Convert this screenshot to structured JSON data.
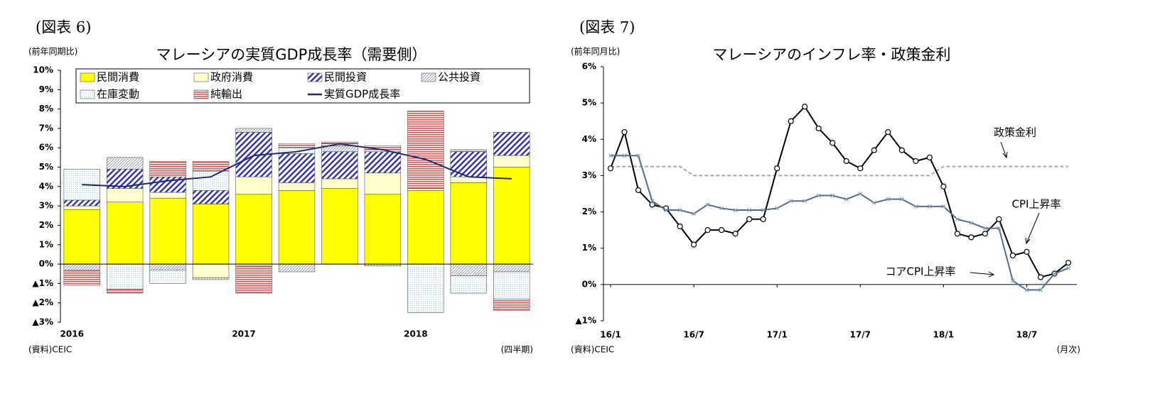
{
  "chart_data": [
    {
      "type": "bar",
      "stacked": true,
      "figure_label": "(図表 6)",
      "title": "マレーシアの実質GDP成長率（需要側）",
      "y_label": "(前年同期比)",
      "x_label": "(四半期)",
      "source": "(資料)CEIC",
      "categories": [
        "2016",
        null,
        null,
        null,
        "2017",
        null,
        null,
        null,
        "2018",
        null,
        null
      ],
      "ylim": [
        -3,
        10
      ],
      "yticks": [
        {
          "value": 10,
          "label": "10%"
        },
        {
          "value": 9,
          "label": "9%"
        },
        {
          "value": 8,
          "label": "8%"
        },
        {
          "value": 7,
          "label": "7%"
        },
        {
          "value": 6,
          "label": "6%"
        },
        {
          "value": 5,
          "label": "5%"
        },
        {
          "value": 4,
          "label": "4%"
        },
        {
          "value": 3,
          "label": "3%"
        },
        {
          "value": 2,
          "label": "2%"
        },
        {
          "value": 1,
          "label": "1%"
        },
        {
          "value": 0,
          "label": "0%"
        },
        {
          "value": -1,
          "label": "▲1%"
        },
        {
          "value": -2,
          "label": "▲2%"
        },
        {
          "value": -3,
          "label": "▲3%"
        }
      ],
      "series": [
        {
          "name": "民間消費",
          "color": "#ffff00",
          "values": [
            2.8,
            3.2,
            3.4,
            3.1,
            3.6,
            3.8,
            3.9,
            3.6,
            3.8,
            4.2,
            5.0
          ]
        },
        {
          "name": "政府消費",
          "color": "#ffffcc",
          "values": [
            0.2,
            0.7,
            0.3,
            -0.7,
            0.9,
            0.4,
            0.5,
            1.1,
            0.1,
            0.3,
            0.6
          ]
        },
        {
          "name": "民間投資",
          "color": "#3333aa",
          "pattern": "diagonal",
          "values": [
            0.3,
            1.0,
            0.8,
            0.7,
            2.3,
            1.5,
            1.4,
            1.1,
            0.0,
            1.3,
            1.2
          ]
        },
        {
          "name": "公共投資",
          "color": "#8888bb",
          "pattern": "thin-diagonal",
          "values": [
            -0.3,
            0.6,
            -0.3,
            -0.1,
            0.2,
            -0.4,
            0.3,
            -0.1,
            0.0,
            -0.6,
            -0.4
          ]
        },
        {
          "name": "在庫変動",
          "color": "#99ccdd",
          "pattern": "dots",
          "values": [
            1.6,
            -1.3,
            -0.7,
            1.0,
            -0.1,
            0.3,
            0.1,
            0.1,
            -2.5,
            -0.9,
            -1.4
          ]
        },
        {
          "name": "純輸出",
          "color": "#e05555",
          "pattern": "horizontal",
          "values": [
            -0.8,
            -0.2,
            0.8,
            0.5,
            -1.4,
            0.2,
            0.1,
            0.2,
            4.0,
            0.1,
            -0.6
          ]
        },
        {
          "name": "実質GDP成長率",
          "color": "#1f2a6b",
          "type": "line",
          "values": [
            4.1,
            4.0,
            4.3,
            4.5,
            5.6,
            5.8,
            6.2,
            5.9,
            5.4,
            4.5,
            4.4
          ]
        }
      ]
    },
    {
      "type": "line",
      "figure_label": "(図表 7)",
      "title": "マレーシアのインフレ率・政策金利",
      "y_label": "(前年同月比)",
      "x_label": "(月次)",
      "source": "(資料)CEIC",
      "categories": [
        "16/1",
        null,
        null,
        null,
        null,
        null,
        "16/7",
        null,
        null,
        null,
        null,
        null,
        "17/1",
        null,
        null,
        null,
        null,
        null,
        "17/7",
        null,
        null,
        null,
        null,
        null,
        "18/1",
        null,
        null,
        null,
        null,
        null,
        "18/7",
        null,
        null,
        null
      ],
      "ylim": [
        -1,
        6
      ],
      "yticks": [
        {
          "value": 6,
          "label": "6%"
        },
        {
          "value": 5,
          "label": "5%"
        },
        {
          "value": 4,
          "label": "4%"
        },
        {
          "value": 3,
          "label": "3%"
        },
        {
          "value": 2,
          "label": "2%"
        },
        {
          "value": 1,
          "label": "1%"
        },
        {
          "value": 0,
          "label": "0%"
        },
        {
          "value": -1,
          "label": "▲1%"
        }
      ],
      "series": [
        {
          "name": "政策金利",
          "color": "#a6a6a6",
          "dash": true,
          "values": [
            3.25,
            3.25,
            3.25,
            3.25,
            3.25,
            3.25,
            3.0,
            3.0,
            3.0,
            3.0,
            3.0,
            3.0,
            3.0,
            3.0,
            3.0,
            3.0,
            3.0,
            3.0,
            3.0,
            3.0,
            3.0,
            3.0,
            3.0,
            3.0,
            3.25,
            3.25,
            3.25,
            3.25,
            3.25,
            3.25,
            3.25,
            3.25,
            3.25,
            3.25
          ]
        },
        {
          "name": "CPI上昇率",
          "color": "#000000",
          "marker": "circle",
          "values": [
            3.2,
            4.2,
            2.6,
            2.2,
            2.1,
            1.6,
            1.1,
            1.5,
            1.5,
            1.4,
            1.8,
            1.8,
            3.2,
            4.5,
            4.9,
            4.3,
            3.9,
            3.4,
            3.2,
            3.7,
            4.2,
            3.7,
            3.4,
            3.5,
            2.7,
            1.4,
            1.3,
            1.4,
            1.8,
            0.8,
            0.9,
            0.2,
            0.3,
            0.6
          ]
        },
        {
          "name": "コアCPI上昇率",
          "color": "#4f6d8f",
          "marker": "x",
          "values": [
            3.55,
            3.55,
            3.55,
            2.3,
            2.05,
            2.05,
            1.95,
            2.2,
            2.1,
            2.05,
            2.05,
            2.05,
            2.1,
            2.3,
            2.3,
            2.45,
            2.45,
            2.35,
            2.5,
            2.25,
            2.35,
            2.35,
            2.15,
            2.15,
            2.15,
            1.8,
            1.7,
            1.55,
            1.55,
            0.1,
            -0.15,
            -0.15,
            0.3,
            0.45
          ]
        }
      ]
    }
  ]
}
